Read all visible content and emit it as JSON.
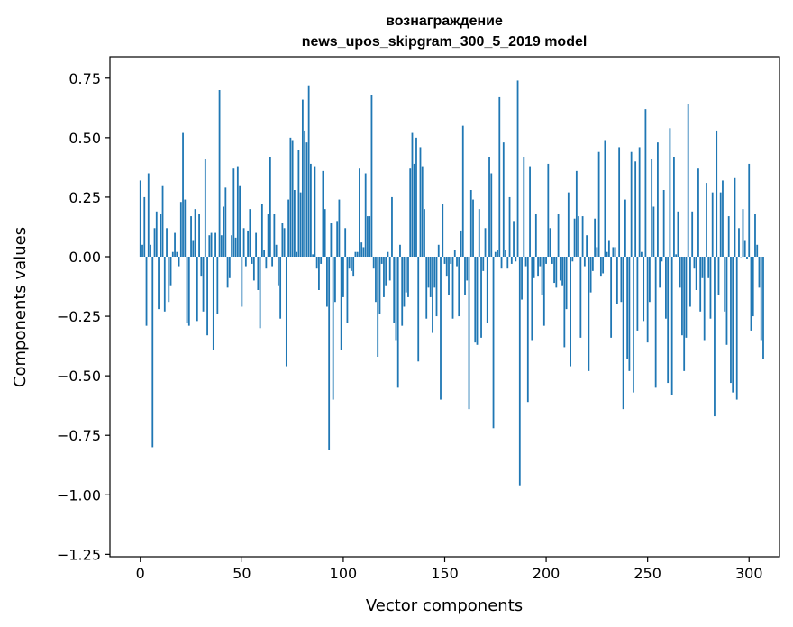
{
  "chart_data": {
    "type": "bar",
    "title": [
      "вознаграждение",
      "news_upos_skipgram_300_5_2019 model"
    ],
    "xlabel": "Vector components",
    "ylabel": "Components values",
    "xlim": [
      -15,
      315
    ],
    "ylim": [
      -1.26,
      0.84
    ],
    "grid": false,
    "legend": "none",
    "colors": {
      "bar": "#1f77b4",
      "axes": "#000000"
    },
    "x_ticks": [
      0,
      50,
      100,
      150,
      200,
      250,
      300
    ],
    "x_tick_labels": [
      "0",
      "50",
      "100",
      "150",
      "200",
      "250",
      "300"
    ],
    "y_ticks": [
      0.75,
      0.5,
      0.25,
      0.0,
      -0.25,
      -0.5,
      -0.75,
      -1.0,
      -1.25
    ],
    "y_tick_labels": [
      "0.75",
      "0.50",
      "0.25",
      "0.00",
      "−0.25",
      "−0.50",
      "−0.75",
      "−1.00",
      "−1.25"
    ],
    "values": [
      0.32,
      0.05,
      0.25,
      -0.29,
      0.35,
      0.05,
      -0.8,
      0.12,
      0.19,
      -0.22,
      0.18,
      0.3,
      -0.23,
      0.12,
      -0.19,
      -0.12,
      0.02,
      0.1,
      0.02,
      -0.04,
      0.23,
      0.52,
      0.24,
      -0.28,
      -0.29,
      0.17,
      0.07,
      0.2,
      -0.27,
      0.18,
      -0.08,
      -0.23,
      0.41,
      -0.33,
      0.09,
      0.1,
      -0.39,
      0.1,
      -0.24,
      0.7,
      0.09,
      0.21,
      0.29,
      -0.13,
      -0.09,
      0.09,
      0.37,
      0.08,
      0.38,
      0.3,
      -0.21,
      0.12,
      -0.04,
      0.11,
      0.2,
      -0.03,
      -0.1,
      0.1,
      -0.14,
      -0.3,
      0.22,
      0.03,
      -0.05,
      0.18,
      0.42,
      -0.04,
      0.18,
      0.05,
      -0.12,
      -0.26,
      0.14,
      0.12,
      -0.46,
      0.24,
      0.5,
      0.49,
      0.28,
      0.02,
      0.45,
      0.27,
      0.66,
      0.53,
      0.48,
      0.72,
      0.39,
      0.01,
      0.38,
      -0.05,
      -0.14,
      -0.03,
      0.36,
      0.2,
      -0.21,
      -0.81,
      0.14,
      -0.6,
      -0.19,
      0.15,
      0.24,
      -0.39,
      -0.17,
      0.12,
      -0.28,
      -0.05,
      -0.06,
      -0.08,
      0.02,
      0.02,
      0.37,
      0.06,
      0.04,
      0.35,
      0.17,
      0.17,
      0.68,
      -0.05,
      -0.19,
      -0.42,
      -0.24,
      -0.03,
      -0.17,
      -0.12,
      0.02,
      -0.1,
      0.25,
      -0.28,
      -0.35,
      -0.55,
      0.05,
      -0.29,
      -0.21,
      -0.15,
      -0.17,
      0.37,
      0.52,
      0.39,
      0.5,
      -0.44,
      0.46,
      0.38,
      0.2,
      -0.26,
      -0.13,
      -0.17,
      -0.32,
      -0.13,
      -0.25,
      0.05,
      -0.6,
      0.22,
      -0.03,
      -0.08,
      -0.16,
      -0.03,
      -0.26,
      0.03,
      -0.04,
      -0.25,
      0.11,
      0.55,
      -0.16,
      -0.1,
      -0.64,
      0.28,
      0.24,
      -0.36,
      -0.37,
      0.2,
      -0.34,
      -0.06,
      0.12,
      -0.28,
      0.42,
      0.35,
      -0.72,
      0.02,
      0.03,
      0.67,
      -0.05,
      0.48,
      0.03,
      -0.05,
      0.25,
      -0.03,
      0.15,
      -0.02,
      0.74,
      -0.96,
      -0.18,
      0.42,
      -0.04,
      -0.61,
      0.38,
      -0.35,
      -0.09,
      0.18,
      -0.08,
      -0.04,
      -0.16,
      -0.29,
      -0.03,
      0.39,
      0.12,
      -0.03,
      -0.11,
      -0.13,
      0.18,
      -0.1,
      -0.12,
      -0.38,
      -0.22,
      0.27,
      -0.46,
      -0.02,
      0.16,
      0.36,
      0.17,
      -0.34,
      0.17,
      -0.04,
      0.09,
      -0.48,
      -0.15,
      -0.06,
      0.16,
      0.04,
      0.44,
      -0.08,
      -0.07,
      0.49,
      0.02,
      0.07,
      -0.34,
      0.04,
      0.04,
      -0.2,
      0.46,
      -0.19,
      -0.64,
      0.24,
      -0.43,
      -0.48,
      0.44,
      -0.57,
      0.4,
      -0.31,
      0.46,
      0.02,
      -0.27,
      0.62,
      -0.36,
      -0.19,
      0.41,
      0.21,
      -0.55,
      0.48,
      -0.13,
      -0.02,
      0.28,
      -0.26,
      -0.53,
      0.54,
      -0.58,
      0.42,
      0.01,
      0.19,
      -0.13,
      -0.33,
      -0.48,
      -0.34,
      0.64,
      -0.21,
      0.19,
      -0.05,
      -0.14,
      0.37,
      -0.23,
      -0.09,
      -0.35,
      0.31,
      -0.09,
      -0.26,
      0.27,
      -0.67,
      0.53,
      -0.16,
      0.27,
      0.32,
      -0.23,
      -0.37,
      0.17,
      -0.53,
      -0.57,
      0.33,
      -0.6,
      0.12,
      0.0,
      0.2,
      0.07,
      -0.01,
      0.39,
      -0.31,
      -0.25,
      0.18,
      0.05,
      -0.13,
      -0.35,
      -0.43
    ]
  }
}
